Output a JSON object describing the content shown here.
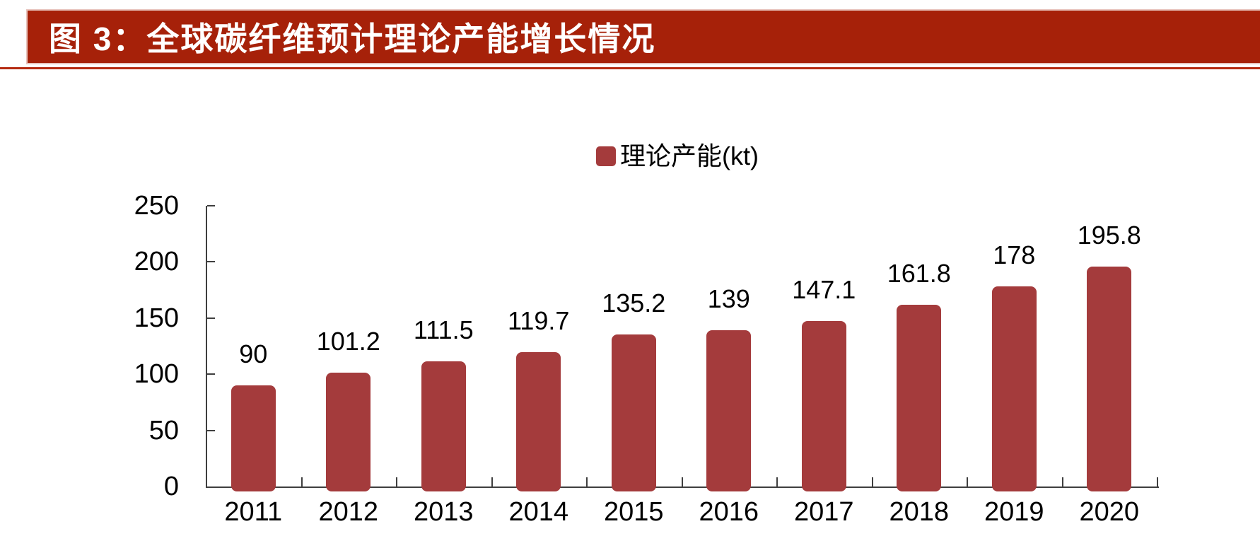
{
  "title_bar": {
    "label": "图 3：全球碳纤维预计理论产能增长情况",
    "bg_color": "#A62109",
    "border_color": "#E8C4BD",
    "underline_color": "#B52A10",
    "text_color": "#FFFFFF"
  },
  "chart_data": {
    "type": "bar",
    "title": "全球碳纤维预计理论产能增长情况",
    "categories": [
      "2011",
      "2012",
      "2013",
      "2014",
      "2015",
      "2016",
      "2017",
      "2018",
      "2019",
      "2020"
    ],
    "series": [
      {
        "name": "理论产能(kt)",
        "values": [
          90,
          101.2,
          111.5,
          119.7,
          135.2,
          139,
          147.1,
          161.8,
          178,
          195.8
        ]
      }
    ],
    "data_labels": [
      "90",
      "101.2",
      "111.5",
      "119.7",
      "135.2",
      "139",
      "147.1",
      "161.8",
      "178",
      "195.8"
    ],
    "legend": {
      "label": "理论产能(kt)",
      "position": "top-center",
      "marker_color": "#A43B3C"
    },
    "xlabel": "",
    "ylabel": "",
    "ylim": [
      0,
      250
    ],
    "yticks": [
      0,
      50,
      100,
      150,
      200,
      250
    ],
    "grid": false,
    "bar_color": "#A43B3C",
    "axis_color": "#3F3F3F"
  }
}
